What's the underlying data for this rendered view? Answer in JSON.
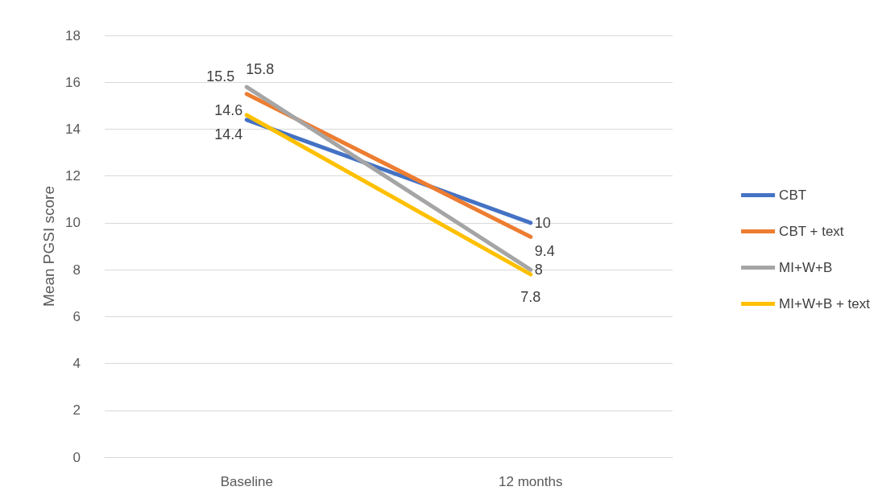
{
  "chart_data": {
    "type": "line",
    "ylabel": "Mean PGSI score",
    "categories": [
      "Baseline",
      "12 months"
    ],
    "series": [
      {
        "name": "CBT",
        "color": "#4472c4",
        "values": [
          14.4,
          10
        ]
      },
      {
        "name": "CBT + text",
        "color": "#ed7d31",
        "values": [
          15.5,
          9.4
        ]
      },
      {
        "name": "MI+W+B",
        "color": "#a5a5a5",
        "values": [
          15.8,
          8
        ]
      },
      {
        "name": "MI+W+B + text",
        "color": "#ffc000",
        "values": [
          14.6,
          7.8
        ]
      }
    ],
    "ylim": [
      0,
      18
    ],
    "yticks": [
      0,
      2,
      4,
      6,
      8,
      10,
      12,
      14,
      16,
      18
    ],
    "grid": "y",
    "legend": "right",
    "marker": "none",
    "line_style": "solid",
    "data_labels": true
  }
}
